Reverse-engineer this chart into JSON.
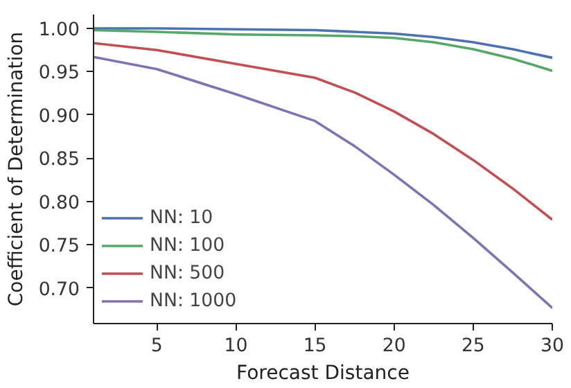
{
  "chart_data": {
    "type": "line",
    "xlabel": "Forecast Distance",
    "ylabel": "Coefficient of Determination",
    "xlim": [
      1,
      30
    ],
    "ylim": [
      0.659,
      1.016
    ],
    "xticks": [
      5,
      10,
      15,
      20,
      25,
      30
    ],
    "yticks": [
      {
        "value": 0.7,
        "label": "0.70"
      },
      {
        "value": 0.75,
        "label": "0.75"
      },
      {
        "value": 0.8,
        "label": "0.80"
      },
      {
        "value": 0.85,
        "label": "0.85"
      },
      {
        "value": 0.9,
        "label": "0.90"
      },
      {
        "value": 0.95,
        "label": "0.95"
      },
      {
        "value": 1.0,
        "label": "1.00"
      }
    ],
    "x": [
      1,
      5,
      10,
      15,
      17.5,
      20,
      22.5,
      25,
      27.5,
      30
    ],
    "series": [
      {
        "name": "NN: 10",
        "color": "#4c72b0",
        "values": [
          1.0,
          1.0,
          0.999,
          0.998,
          0.996,
          0.994,
          0.99,
          0.984,
          0.976,
          0.966
        ]
      },
      {
        "name": "NN: 100",
        "color": "#55a868",
        "values": [
          0.998,
          0.996,
          0.993,
          0.992,
          0.991,
          0.989,
          0.984,
          0.976,
          0.965,
          0.951
        ]
      },
      {
        "name": "NN: 500",
        "color": "#c44e52",
        "values": [
          0.983,
          0.975,
          0.959,
          0.943,
          0.926,
          0.904,
          0.878,
          0.848,
          0.815,
          0.779
        ]
      },
      {
        "name": "NN: 1000",
        "color": "#8172b2",
        "values": [
          0.967,
          0.953,
          0.924,
          0.893,
          0.864,
          0.831,
          0.796,
          0.758,
          0.718,
          0.677
        ]
      }
    ],
    "grid": false,
    "legend": "bottom left",
    "line_style": "solid",
    "marker": "none"
  }
}
